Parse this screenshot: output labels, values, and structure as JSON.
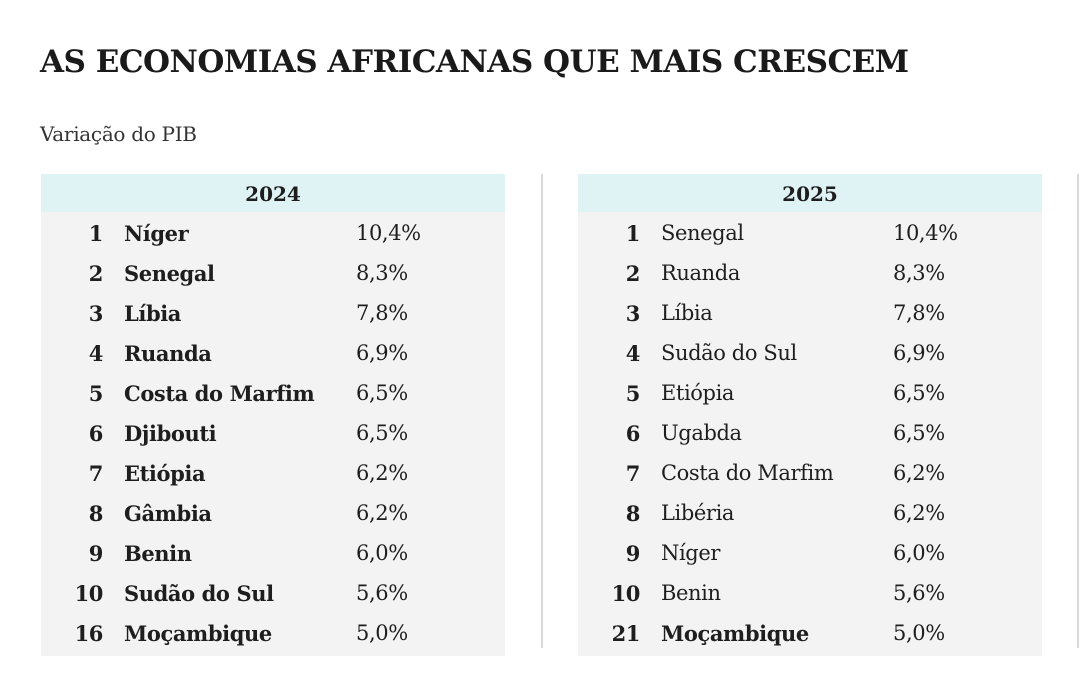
{
  "title": "AS ECONOMIAS AFRICANAS QUE MAIS CRESCEM",
  "subtitle": "Variação do PIB",
  "chart_data": {
    "type": "table",
    "title": "AS ECONOMIAS AFRICANAS QUE MAIS CRESCEM",
    "subtitle": "Variação do PIB",
    "colors": {
      "header_bg": "#dff3f5",
      "table_bg": "#f3f3f3",
      "divider": "#d9d9d9"
    },
    "tables": [
      {
        "year": "2024",
        "rows": [
          {
            "rank": "1",
            "country": "Níger",
            "value": "10,4%"
          },
          {
            "rank": "2",
            "country": "Senegal",
            "value": "8,3%"
          },
          {
            "rank": "3",
            "country": "Líbia",
            "value": "7,8%"
          },
          {
            "rank": "4",
            "country": "Ruanda",
            "value": "6,9%"
          },
          {
            "rank": "5",
            "country": "Costa do Marfim",
            "value": "6,5%"
          },
          {
            "rank": "6",
            "country": "Djibouti",
            "value": "6,5%"
          },
          {
            "rank": "7",
            "country": "Etiópia",
            "value": "6,2%"
          },
          {
            "rank": "8",
            "country": "Gâmbia",
            "value": "6,2%"
          },
          {
            "rank": "9",
            "country": "Benin",
            "value": "6,0%"
          },
          {
            "rank": "10",
            "country": "Sudão do Sul",
            "value": "5,6%"
          },
          {
            "rank": "16",
            "country": "Moçambique",
            "value": "5,0%"
          }
        ]
      },
      {
        "year": "2025",
        "rows": [
          {
            "rank": "1",
            "country": "Senegal",
            "value": "10,4%"
          },
          {
            "rank": "2",
            "country": "Ruanda",
            "value": "8,3%"
          },
          {
            "rank": "3",
            "country": "Líbia",
            "value": "7,8%"
          },
          {
            "rank": "4",
            "country": "Sudão do Sul",
            "value": "6,9%"
          },
          {
            "rank": "5",
            "country": "Etiópia",
            "value": "6,5%"
          },
          {
            "rank": "6",
            "country": "Ugabda",
            "value": "6,5%"
          },
          {
            "rank": "7",
            "country": "Costa do Marfim",
            "value": "6,2%"
          },
          {
            "rank": "8",
            "country": "Libéria",
            "value": "6,2%"
          },
          {
            "rank": "9",
            "country": "Níger",
            "value": "6,0%"
          },
          {
            "rank": "10",
            "country": "Benin",
            "value": "5,6%"
          },
          {
            "rank": "21",
            "country": "Moçambique",
            "value": "5,0%",
            "highlight": true
          }
        ]
      }
    ]
  }
}
